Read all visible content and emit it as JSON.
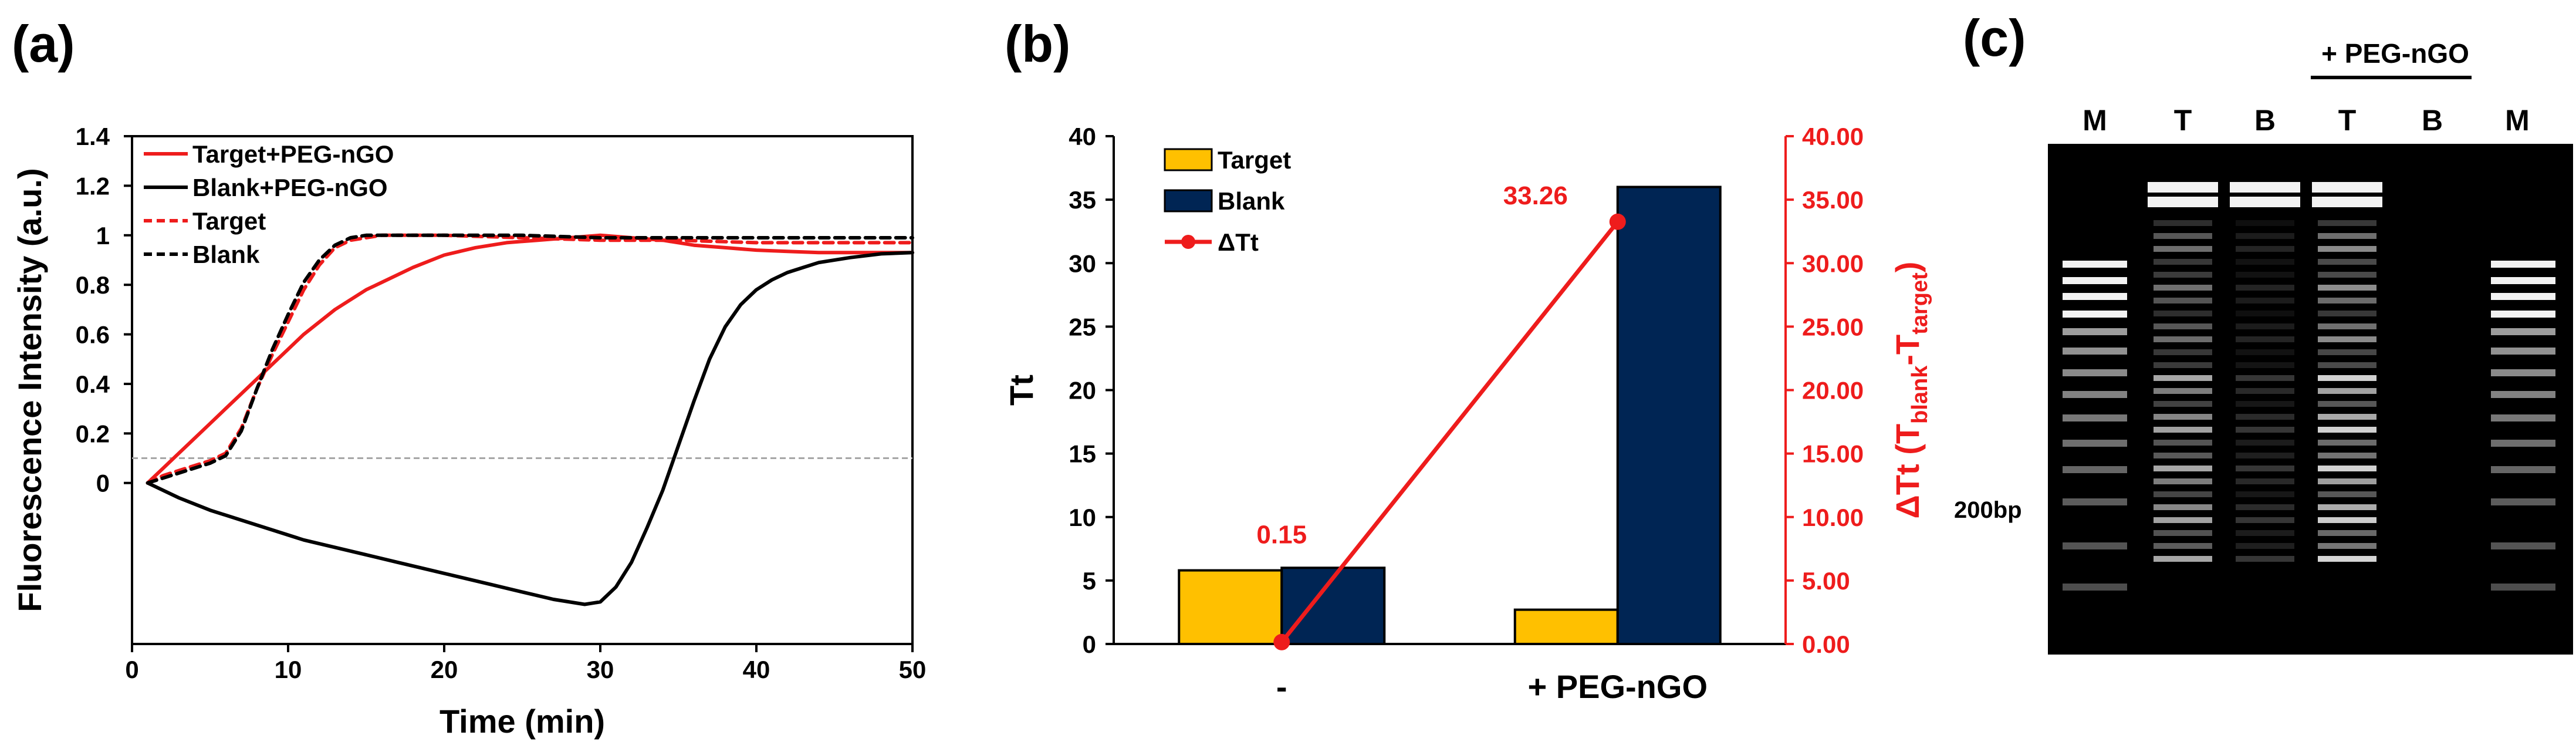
{
  "panel_labels": {
    "a": "(a)",
    "b": "(b)",
    "c": "(c)"
  },
  "chart_data": [
    {
      "id": "a",
      "type": "line",
      "xlabel": "Time (min)",
      "ylabel": "Fluorescence Intensity (a.u.)",
      "xlim": [
        0,
        50
      ],
      "ylim": [
        -0.65,
        1.4
      ],
      "x_ticks": [
        "0",
        "10",
        "20",
        "30",
        "40",
        "50"
      ],
      "y_ticks": [
        "0",
        "0.2",
        "0.4",
        "0.6",
        "0.8",
        "1",
        "1.2",
        "1.4"
      ],
      "threshold": 0.1,
      "series": [
        {
          "name": "Target+PEG-nGO",
          "color": "#ee1c1c",
          "dash": false,
          "x": [
            1,
            2,
            3,
            4,
            5,
            6,
            7,
            8,
            9,
            10,
            11,
            12,
            13,
            14,
            15,
            16,
            18,
            20,
            22,
            24,
            26,
            28,
            30,
            32,
            34,
            36,
            38,
            40,
            42,
            44,
            46,
            48,
            50
          ],
          "y": [
            0,
            0.06,
            0.12,
            0.18,
            0.24,
            0.3,
            0.36,
            0.42,
            0.48,
            0.54,
            0.6,
            0.65,
            0.7,
            0.74,
            0.78,
            0.81,
            0.87,
            0.92,
            0.95,
            0.97,
            0.98,
            0.99,
            1.0,
            0.99,
            0.98,
            0.96,
            0.95,
            0.94,
            0.935,
            0.93,
            0.93,
            0.93,
            0.93
          ]
        },
        {
          "name": "Blank+PEG-nGO",
          "color": "#000000",
          "dash": false,
          "x": [
            1,
            3,
            5,
            7,
            9,
            11,
            13,
            15,
            17,
            19,
            21,
            23,
            25,
            27,
            29,
            30,
            31,
            32,
            33,
            34,
            35,
            36,
            37,
            38,
            39,
            40,
            41,
            42,
            43,
            44,
            46,
            48,
            50
          ],
          "y": [
            0,
            -0.06,
            -0.11,
            -0.15,
            -0.19,
            -0.23,
            -0.26,
            -0.29,
            -0.32,
            -0.35,
            -0.38,
            -0.41,
            -0.44,
            -0.47,
            -0.49,
            -0.48,
            -0.42,
            -0.32,
            -0.18,
            -0.03,
            0.15,
            0.33,
            0.5,
            0.63,
            0.72,
            0.78,
            0.82,
            0.85,
            0.87,
            0.89,
            0.91,
            0.925,
            0.93
          ]
        },
        {
          "name": "Target",
          "color": "#ee1c1c",
          "dash": true,
          "x": [
            1,
            2,
            3,
            4,
            5,
            6,
            7,
            8,
            9,
            10,
            11,
            12,
            13,
            14,
            15,
            16,
            18,
            20,
            25,
            30,
            35,
            40,
            45,
            50
          ],
          "y": [
            0,
            0.03,
            0.05,
            0.07,
            0.09,
            0.12,
            0.22,
            0.38,
            0.52,
            0.65,
            0.78,
            0.88,
            0.95,
            0.98,
            0.99,
            1.0,
            1.0,
            1.0,
            0.99,
            0.98,
            0.98,
            0.97,
            0.97,
            0.97
          ]
        },
        {
          "name": "Blank",
          "color": "#000000",
          "dash": true,
          "x": [
            1,
            2,
            3,
            4,
            5,
            6,
            7,
            8,
            9,
            10,
            11,
            12,
            13,
            14,
            15,
            16,
            18,
            20,
            25,
            30,
            35,
            40,
            45,
            50
          ],
          "y": [
            0,
            0.02,
            0.04,
            0.06,
            0.08,
            0.11,
            0.21,
            0.38,
            0.54,
            0.68,
            0.81,
            0.9,
            0.96,
            0.99,
            1.0,
            1.0,
            1.0,
            1.0,
            1.0,
            0.99,
            0.99,
            0.99,
            0.99,
            0.99
          ]
        }
      ]
    },
    {
      "id": "b",
      "type": "bar",
      "categories": [
        "-",
        "+ PEG-nGO"
      ],
      "ylabel": "Tt",
      "ylim": [
        0,
        40
      ],
      "y_ticks": [
        "0",
        "5",
        "10",
        "15",
        "20",
        "25",
        "30",
        "35",
        "40"
      ],
      "series": [
        {
          "name": "Target",
          "color": "#ffc000",
          "values": [
            5.8,
            2.7
          ]
        },
        {
          "name": "Blank",
          "color": "#002554",
          "values": [
            6.0,
            36.0
          ]
        }
      ],
      "secondary": {
        "name": "ΔTt",
        "color": "#ee1c1c",
        "values": [
          0.15,
          33.26
        ],
        "labels": [
          "0.15",
          "33.26"
        ],
        "ylim": [
          0,
          40
        ],
        "y_ticks": [
          "0.00",
          "5.00",
          "10.00",
          "15.00",
          "20.00",
          "25.00",
          "30.00",
          "35.00",
          "40.00"
        ],
        "ylabel_main": "ΔTt (T",
        "ylabel_sub1": "blank",
        "ylabel_mid": "-T",
        "ylabel_sub2": "target",
        "ylabel_end": ")"
      }
    }
  ],
  "gel": {
    "group_label": "+ PEG-nGO",
    "lanes": [
      "M",
      "T",
      "B",
      "T",
      "B",
      "M"
    ],
    "marker_label": "200bp"
  }
}
